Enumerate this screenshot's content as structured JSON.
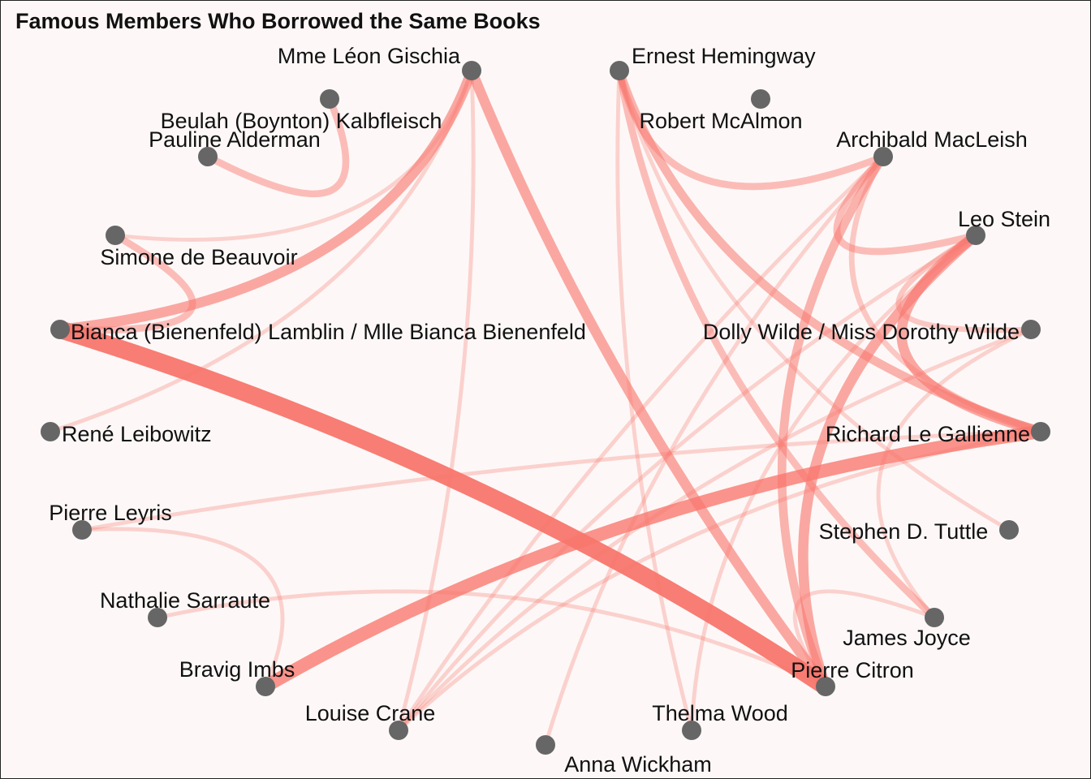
{
  "title": "Famous Members Who Borrowed the Same Books",
  "colors": {
    "edge": "#f8766d",
    "node": "#666666",
    "background": "#fdf8f7"
  },
  "nodes": [
    {
      "id": "gischia",
      "label": "Mme Léon Gischia"
    },
    {
      "id": "hemingway",
      "label": "Ernest Hemingway"
    },
    {
      "id": "kalbfleisch",
      "label": "Beulah (Boynton) Kalbfleisch"
    },
    {
      "id": "mcalmon",
      "label": "Robert McAlmon"
    },
    {
      "id": "alderman",
      "label": "Pauline Alderman"
    },
    {
      "id": "macleish",
      "label": "Archibald MacLeish"
    },
    {
      "id": "beauvoir",
      "label": "Simone de Beauvoir"
    },
    {
      "id": "stein",
      "label": "Leo Stein"
    },
    {
      "id": "lamblin",
      "label": "Bianca (Bienenfeld) Lamblin / Mlle Bianca Bienenfeld"
    },
    {
      "id": "wilde",
      "label": "Dolly Wilde / Miss Dorothy Wilde"
    },
    {
      "id": "leibowitz",
      "label": "René Leibowitz"
    },
    {
      "id": "gallienne",
      "label": "Richard Le Gallienne"
    },
    {
      "id": "leyris",
      "label": "Pierre Leyris"
    },
    {
      "id": "tuttle",
      "label": "Stephen D. Tuttle"
    },
    {
      "id": "sarraute",
      "label": "Nathalie Sarraute"
    },
    {
      "id": "joyce",
      "label": "James Joyce"
    },
    {
      "id": "imbs",
      "label": "Bravig Imbs"
    },
    {
      "id": "citron",
      "label": "Pierre Citron"
    },
    {
      "id": "crane",
      "label": "Louise Crane"
    },
    {
      "id": "wood",
      "label": "Thelma Wood"
    },
    {
      "id": "wickham",
      "label": "Anna Wickham"
    }
  ],
  "edges": [
    {
      "source": "lamblin",
      "target": "citron",
      "weight": 10
    },
    {
      "source": "imbs",
      "target": "gallienne",
      "weight": 7
    },
    {
      "source": "gischia",
      "target": "citron",
      "weight": 5
    },
    {
      "source": "gischia",
      "target": "lamblin",
      "weight": 5
    },
    {
      "source": "stein",
      "target": "citron",
      "weight": 5
    },
    {
      "source": "stein",
      "target": "gallienne",
      "weight": 5
    },
    {
      "source": "macleish",
      "target": "citron",
      "weight": 4
    },
    {
      "source": "hemingway",
      "target": "gallienne",
      "weight": 4
    },
    {
      "source": "hemingway",
      "target": "joyce",
      "weight": 3
    },
    {
      "source": "hemingway",
      "target": "macleish",
      "weight": 3
    },
    {
      "source": "macleish",
      "target": "stein",
      "weight": 3
    },
    {
      "source": "beauvoir",
      "target": "lamblin",
      "weight": 3
    },
    {
      "source": "alderman",
      "target": "kalbfleisch",
      "weight": 3
    },
    {
      "source": "stein",
      "target": "wilde",
      "weight": 2
    },
    {
      "source": "macleish",
      "target": "gallienne",
      "weight": 2
    },
    {
      "source": "hemingway",
      "target": "tuttle",
      "weight": 1
    },
    {
      "source": "hemingway",
      "target": "wood",
      "weight": 1
    },
    {
      "source": "macleish",
      "target": "wickham",
      "weight": 1
    },
    {
      "source": "stein",
      "target": "crane",
      "weight": 1
    },
    {
      "source": "wilde",
      "target": "crane",
      "weight": 1
    },
    {
      "source": "macleish",
      "target": "crane",
      "weight": 1
    },
    {
      "source": "gischia",
      "target": "leibowitz",
      "weight": 1
    },
    {
      "source": "gischia",
      "target": "beauvoir",
      "weight": 1
    },
    {
      "source": "gischia",
      "target": "crane",
      "weight": 1
    },
    {
      "source": "leyris",
      "target": "gallienne",
      "weight": 1
    },
    {
      "source": "leyris",
      "target": "imbs",
      "weight": 1
    },
    {
      "source": "sarraute",
      "target": "citron",
      "weight": 1
    },
    {
      "source": "joyce",
      "target": "citron",
      "weight": 1
    },
    {
      "source": "wood",
      "target": "stein",
      "weight": 1
    },
    {
      "source": "wilde",
      "target": "joyce",
      "weight": 1
    },
    {
      "source": "gallienne",
      "target": "crane",
      "weight": 1
    }
  ]
}
